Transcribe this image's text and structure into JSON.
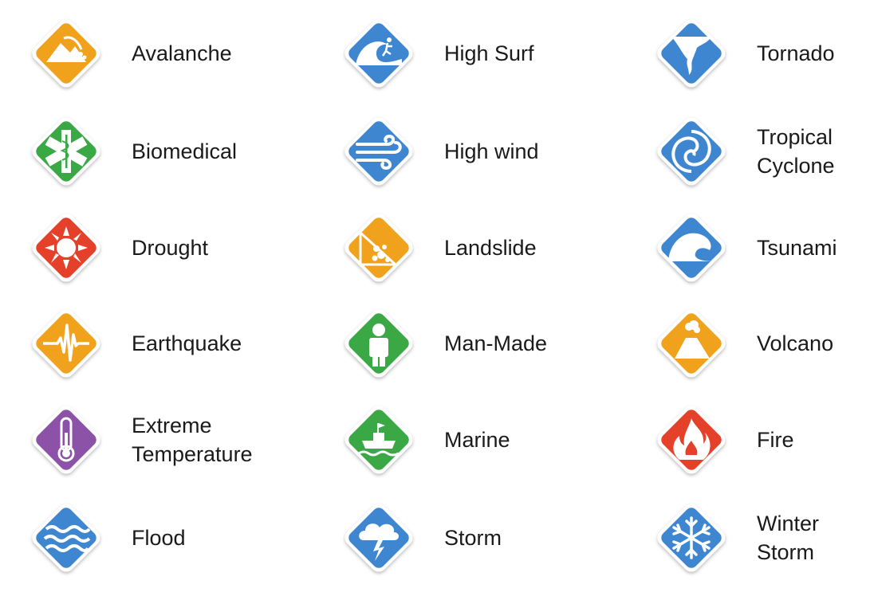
{
  "colors": {
    "orange": "#F0A21D",
    "blue": "#3E86CF",
    "green": "#39A845",
    "red": "#E4402A",
    "purple": "#8B52A8"
  },
  "hazards": [
    {
      "label": "Avalanche",
      "icon": "avalanche-icon",
      "color": "orange"
    },
    {
      "label": "Biomedical",
      "icon": "biomedical-icon",
      "color": "green"
    },
    {
      "label": "Drought",
      "icon": "drought-icon",
      "color": "red"
    },
    {
      "label": "Earthquake",
      "icon": "earthquake-icon",
      "color": "orange"
    },
    {
      "label": "Extreme\nTemperature",
      "icon": "thermometer-icon",
      "color": "purple"
    },
    {
      "label": "Flood",
      "icon": "flood-icon",
      "color": "blue"
    },
    {
      "label": "High Surf",
      "icon": "high-surf-icon",
      "color": "blue"
    },
    {
      "label": "High wind",
      "icon": "high-wind-icon",
      "color": "blue"
    },
    {
      "label": "Landslide",
      "icon": "landslide-icon",
      "color": "orange"
    },
    {
      "label": "Man-Made",
      "icon": "man-made-icon",
      "color": "green"
    },
    {
      "label": "Marine",
      "icon": "marine-icon",
      "color": "green"
    },
    {
      "label": "Storm",
      "icon": "storm-icon",
      "color": "blue"
    },
    {
      "label": "Tornado",
      "icon": "tornado-icon",
      "color": "blue"
    },
    {
      "label": "Tropical\nCyclone",
      "icon": "tropical-cyclone-icon",
      "color": "blue"
    },
    {
      "label": "Tsunami",
      "icon": "tsunami-icon",
      "color": "blue"
    },
    {
      "label": "Volcano",
      "icon": "volcano-icon",
      "color": "orange"
    },
    {
      "label": "Fire",
      "icon": "fire-icon",
      "color": "red"
    },
    {
      "label": "Winter\nStorm",
      "icon": "snowflake-icon",
      "color": "blue"
    }
  ]
}
